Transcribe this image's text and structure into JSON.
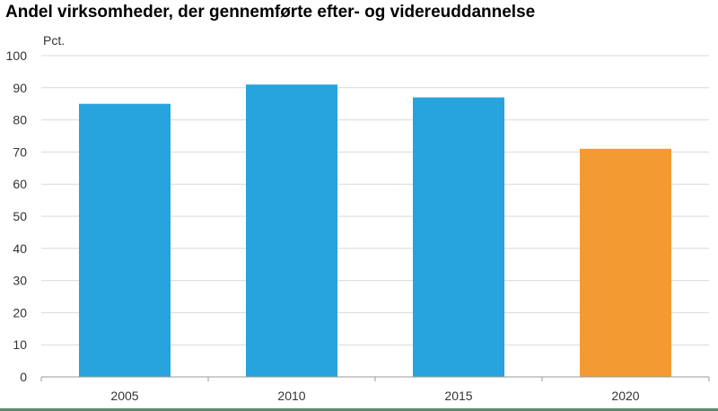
{
  "title": "Andel virksomheder, der gennemførte efter- og videreuddannelse",
  "chart_data": {
    "type": "bar",
    "title": "Andel virksomheder, der gennemførte efter- og videreuddannelse",
    "ylabel": "Pct.",
    "xlabel": "",
    "ylim": [
      0,
      100
    ],
    "yticks": [
      0,
      10,
      20,
      30,
      40,
      50,
      60,
      70,
      80,
      90,
      100
    ],
    "categories": [
      "2005",
      "2010",
      "2015",
      "2020"
    ],
    "values": [
      85,
      91,
      87,
      71
    ],
    "colors": [
      "#27a3dd",
      "#27a3dd",
      "#27a3dd",
      "#f39a33"
    ],
    "grid": true,
    "legend": "none"
  },
  "colors": {
    "gridline": "#d9d9d9",
    "axis": "#9a9a9a",
    "footer_rule": "#5a8a6a"
  }
}
